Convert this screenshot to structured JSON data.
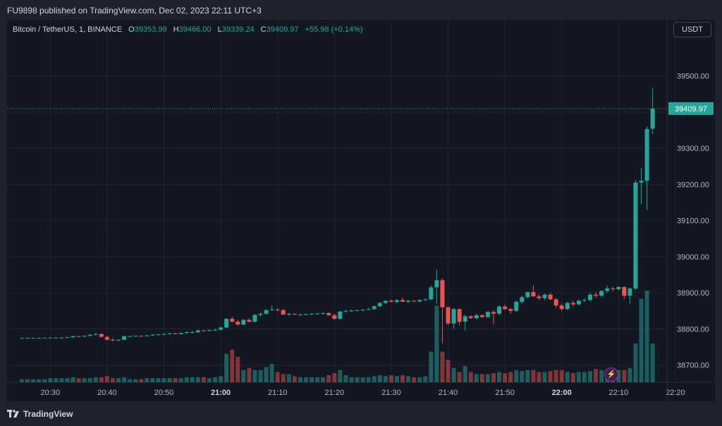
{
  "header": {
    "publish_text": "FU9898 published on TradingView.com, Dec 02, 2023 22:11 UTC+3"
  },
  "legend": {
    "symbol": "Bitcoin / TetherUS, 1, BINANCE",
    "o_label": "O",
    "o_value": "39353.99",
    "h_label": "H",
    "h_value": "39466.00",
    "l_label": "L",
    "l_value": "39339.24",
    "c_label": "C",
    "c_value": "39409.97",
    "change": "+55.98 (+0.14%)"
  },
  "currency_button": "USDT",
  "footer": {
    "brand": "TradingView"
  },
  "colors": {
    "up": "#26a69a",
    "down": "#ef5350",
    "background": "#131722",
    "grid": "#1f2330",
    "text": "#b2b5be"
  },
  "chart_data": {
    "type": "candlestick",
    "x_ticks": [
      "20:30",
      "20:40",
      "20:50",
      "21:00",
      "21:10",
      "21:20",
      "21:30",
      "21:40",
      "21:50",
      "22:00",
      "22:10",
      "22:20"
    ],
    "x_ticks_bold": [
      "21:00",
      "22:00"
    ],
    "y_ticks": [
      "38700.00",
      "38800.00",
      "38900.00",
      "39000.00",
      "39100.00",
      "39200.00",
      "39300.00",
      "39400.00",
      "39500.00"
    ],
    "ylim": [
      38670,
      39560
    ],
    "last_price": 39409.97,
    "last_price_label": "39409.97",
    "x_start_time": "20:25",
    "candles": [
      [
        38775,
        38776,
        38774,
        38775
      ],
      [
        38775,
        38776,
        38774,
        38775
      ],
      [
        38775,
        38776,
        38774,
        38775
      ],
      [
        38775,
        38776,
        38774,
        38775
      ],
      [
        38775,
        38776,
        38774,
        38776
      ],
      [
        38776,
        38777,
        38775,
        38776
      ],
      [
        38776,
        38777,
        38775,
        38776
      ],
      [
        38776,
        38777,
        38775,
        38776
      ],
      [
        38776,
        38778,
        38775,
        38777
      ],
      [
        38777,
        38781,
        38775,
        38780
      ],
      [
        38780,
        38781,
        38778,
        38779
      ],
      [
        38779,
        38782,
        38777,
        38781
      ],
      [
        38781,
        38785,
        38779,
        38784
      ],
      [
        38784,
        38789,
        38782,
        38786
      ],
      [
        38786,
        38787,
        38777,
        38778
      ],
      [
        38778,
        38781,
        38768,
        38770
      ],
      [
        38770,
        38775,
        38766,
        38768
      ],
      [
        38768,
        38771,
        38766,
        38770
      ],
      [
        38770,
        38781,
        38769,
        38780
      ],
      [
        38780,
        38781,
        38779,
        38780
      ],
      [
        38780,
        38781,
        38779,
        38781
      ],
      [
        38781,
        38782,
        38779,
        38780
      ],
      [
        38780,
        38783,
        38779,
        38782
      ],
      [
        38782,
        38786,
        38781,
        38784
      ],
      [
        38784,
        38786,
        38782,
        38785
      ],
      [
        38785,
        38788,
        38783,
        38786
      ],
      [
        38786,
        38789,
        38784,
        38788
      ],
      [
        38788,
        38789,
        38785,
        38786
      ],
      [
        38786,
        38790,
        38785,
        38789
      ],
      [
        38789,
        38793,
        38786,
        38791
      ],
      [
        38791,
        38795,
        38788,
        38791
      ],
      [
        38791,
        38798,
        38789,
        38796
      ],
      [
        38796,
        38797,
        38793,
        38795
      ],
      [
        38795,
        38798,
        38793,
        38797
      ],
      [
        38797,
        38800,
        38794,
        38798
      ],
      [
        38798,
        38806,
        38795,
        38804
      ],
      [
        38804,
        38830,
        38802,
        38828
      ],
      [
        38828,
        38834,
        38818,
        38820
      ],
      [
        38820,
        38825,
        38810,
        38812
      ],
      [
        38812,
        38827,
        38810,
        38825
      ],
      [
        38825,
        38830,
        38818,
        38820
      ],
      [
        38820,
        38841,
        38818,
        38839
      ],
      [
        38839,
        38845,
        38833,
        38842
      ],
      [
        38842,
        38855,
        38840,
        38852
      ],
      [
        38852,
        38865,
        38850,
        38854
      ],
      [
        38854,
        38857,
        38848,
        38852
      ],
      [
        38852,
        38855,
        38838,
        38840
      ],
      [
        38840,
        38844,
        38836,
        38842
      ],
      [
        38842,
        38843,
        38839,
        38840
      ],
      [
        38840,
        38842,
        38837,
        38840
      ],
      [
        38840,
        38842,
        38838,
        38841
      ],
      [
        38841,
        38844,
        38839,
        38842
      ],
      [
        38842,
        38845,
        38840,
        38843
      ],
      [
        38843,
        38845,
        38840,
        38844
      ],
      [
        38844,
        38846,
        38836,
        38838
      ],
      [
        38838,
        38842,
        38825,
        38828
      ],
      [
        38828,
        38850,
        38826,
        38848
      ],
      [
        38848,
        38853,
        38845,
        38850
      ],
      [
        38850,
        38853,
        38847,
        38851
      ],
      [
        38851,
        38853,
        38849,
        38852
      ],
      [
        38852,
        38855,
        38850,
        38853
      ],
      [
        38853,
        38858,
        38851,
        38855
      ],
      [
        38855,
        38865,
        38853,
        38863
      ],
      [
        38863,
        38874,
        38860,
        38872
      ],
      [
        38872,
        38880,
        38868,
        38878
      ],
      [
        38878,
        38882,
        38873,
        38875
      ],
      [
        38875,
        38882,
        38871,
        38880
      ],
      [
        38880,
        38887,
        38876,
        38875
      ],
      [
        38875,
        38880,
        38872,
        38878
      ],
      [
        38878,
        38880,
        38874,
        38876
      ],
      [
        38876,
        38882,
        38874,
        38880
      ],
      [
        38880,
        38884,
        38878,
        38882
      ],
      [
        38882,
        38920,
        38880,
        38915
      ],
      [
        38915,
        38965,
        38870,
        38935
      ],
      [
        38935,
        38940,
        38760,
        38860
      ],
      [
        38860,
        38862,
        38810,
        38815
      ],
      [
        38815,
        38858,
        38800,
        38855
      ],
      [
        38855,
        38856,
        38810,
        38820
      ],
      [
        38820,
        38840,
        38795,
        38835
      ],
      [
        38835,
        38838,
        38828,
        38830
      ],
      [
        38830,
        38842,
        38826,
        38838
      ],
      [
        38838,
        38840,
        38830,
        38833
      ],
      [
        38833,
        38850,
        38830,
        38847
      ],
      [
        38847,
        38852,
        38812,
        38842
      ],
      [
        38842,
        38865,
        38838,
        38862
      ],
      [
        38862,
        38868,
        38852,
        38855
      ],
      [
        38855,
        38858,
        38842,
        38850
      ],
      [
        38850,
        38878,
        38847,
        38875
      ],
      [
        38875,
        38892,
        38870,
        38888
      ],
      [
        38888,
        38903,
        38884,
        38902
      ],
      [
        38902,
        38920,
        38890,
        38890
      ],
      [
        38890,
        38896,
        38880,
        38885
      ],
      [
        38885,
        38898,
        38880,
        38895
      ],
      [
        38895,
        38900,
        38880,
        38882
      ],
      [
        38882,
        38886,
        38858,
        38865
      ],
      [
        38865,
        38870,
        38850,
        38855
      ],
      [
        38855,
        38876,
        38852,
        38872
      ],
      [
        38872,
        38878,
        38862,
        38868
      ],
      [
        38868,
        38882,
        38865,
        38878
      ],
      [
        38878,
        38885,
        38874,
        38880
      ],
      [
        38880,
        38900,
        38876,
        38895
      ],
      [
        38895,
        38902,
        38886,
        38892
      ],
      [
        38892,
        38908,
        38888,
        38905
      ],
      [
        38905,
        38920,
        38899,
        38912
      ],
      [
        38912,
        38917,
        38905,
        38910
      ],
      [
        38910,
        38918,
        38906,
        38916
      ],
      [
        38916,
        38918,
        38882,
        38892
      ],
      [
        38892,
        38915,
        38870,
        38912
      ],
      [
        38912,
        39212,
        38908,
        39205
      ],
      [
        39205,
        39245,
        39145,
        39210
      ],
      [
        39210,
        39360,
        39130,
        39353
      ],
      [
        39353.99,
        39466,
        39339.24,
        39409.97
      ]
    ],
    "volumes": [
      3,
      3,
      3,
      3,
      3,
      4,
      4,
      4,
      4,
      5,
      4,
      4,
      4,
      5,
      5,
      6,
      4,
      4,
      5,
      3,
      3,
      3,
      4,
      4,
      4,
      4,
      4,
      4,
      4,
      5,
      5,
      5,
      5,
      4,
      5,
      6,
      28,
      32,
      25,
      12,
      14,
      12,
      12,
      15,
      18,
      10,
      8,
      8,
      6,
      5,
      5,
      5,
      5,
      5,
      7,
      9,
      12,
      7,
      5,
      5,
      5,
      5,
      6,
      7,
      6,
      7,
      6,
      7,
      6,
      5,
      5,
      6,
      30,
      75,
      30,
      22,
      14,
      10,
      16,
      10,
      8,
      8,
      8,
      9,
      10,
      9,
      10,
      12,
      11,
      12,
      12,
      10,
      10,
      11,
      12,
      12,
      10,
      9,
      10,
      10,
      11,
      13,
      12,
      12,
      12,
      12,
      12,
      14,
      38,
      82,
      90,
      38
    ]
  }
}
